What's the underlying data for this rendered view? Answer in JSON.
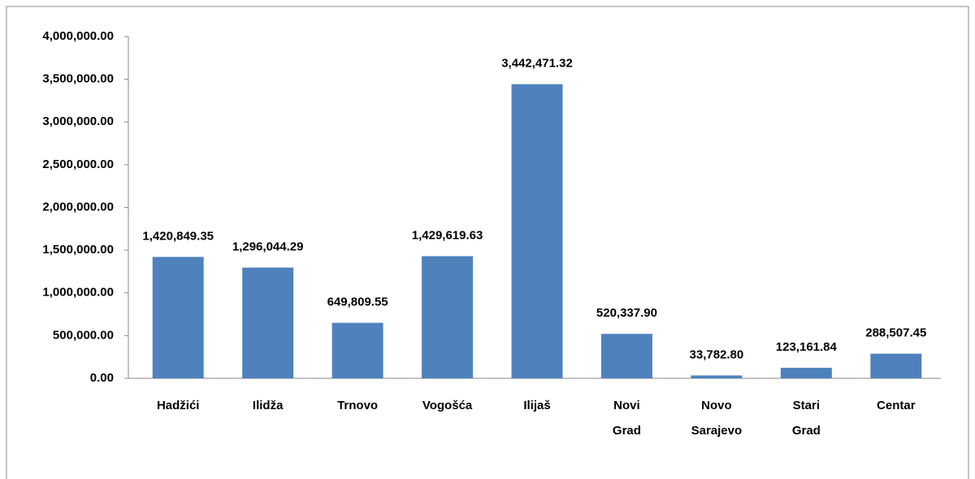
{
  "chart_data": {
    "type": "bar",
    "categories": [
      "Hadžići",
      "Ilidža",
      "Trnovo",
      "Vogošća",
      "Ilijaš",
      "Novi Grad",
      "Novo Sarajevo",
      "Stari Grad",
      "Centar"
    ],
    "values": [
      1420849.35,
      1296044.29,
      649809.55,
      1429619.63,
      3442471.32,
      520337.9,
      33782.8,
      123161.84,
      288507.45
    ],
    "value_labels": [
      "1,420,849.35",
      "1,296,044.29",
      "649,809.55",
      "1,429,619.63",
      "3,442,471.32",
      "520,337.90",
      "33,782.80",
      "123,161.84",
      "288,507.45"
    ],
    "color": "#4f81bd",
    "ylim": [
      0,
      4000000
    ],
    "yticks": [
      {
        "value": 0,
        "label": "0.00"
      },
      {
        "value": 500000,
        "label": "500,000.00"
      },
      {
        "value": 1000000,
        "label": "1,000,000.00"
      },
      {
        "value": 1500000,
        "label": "1,500,000.00"
      },
      {
        "value": 2000000,
        "label": "2,000,000.00"
      },
      {
        "value": 2500000,
        "label": "2,500,000.00"
      },
      {
        "value": 3000000,
        "label": "3,000,000.00"
      },
      {
        "value": 3500000,
        "label": "3,500,000.00"
      },
      {
        "value": 4000000,
        "label": "4,000,000.00"
      }
    ],
    "grid": false
  }
}
